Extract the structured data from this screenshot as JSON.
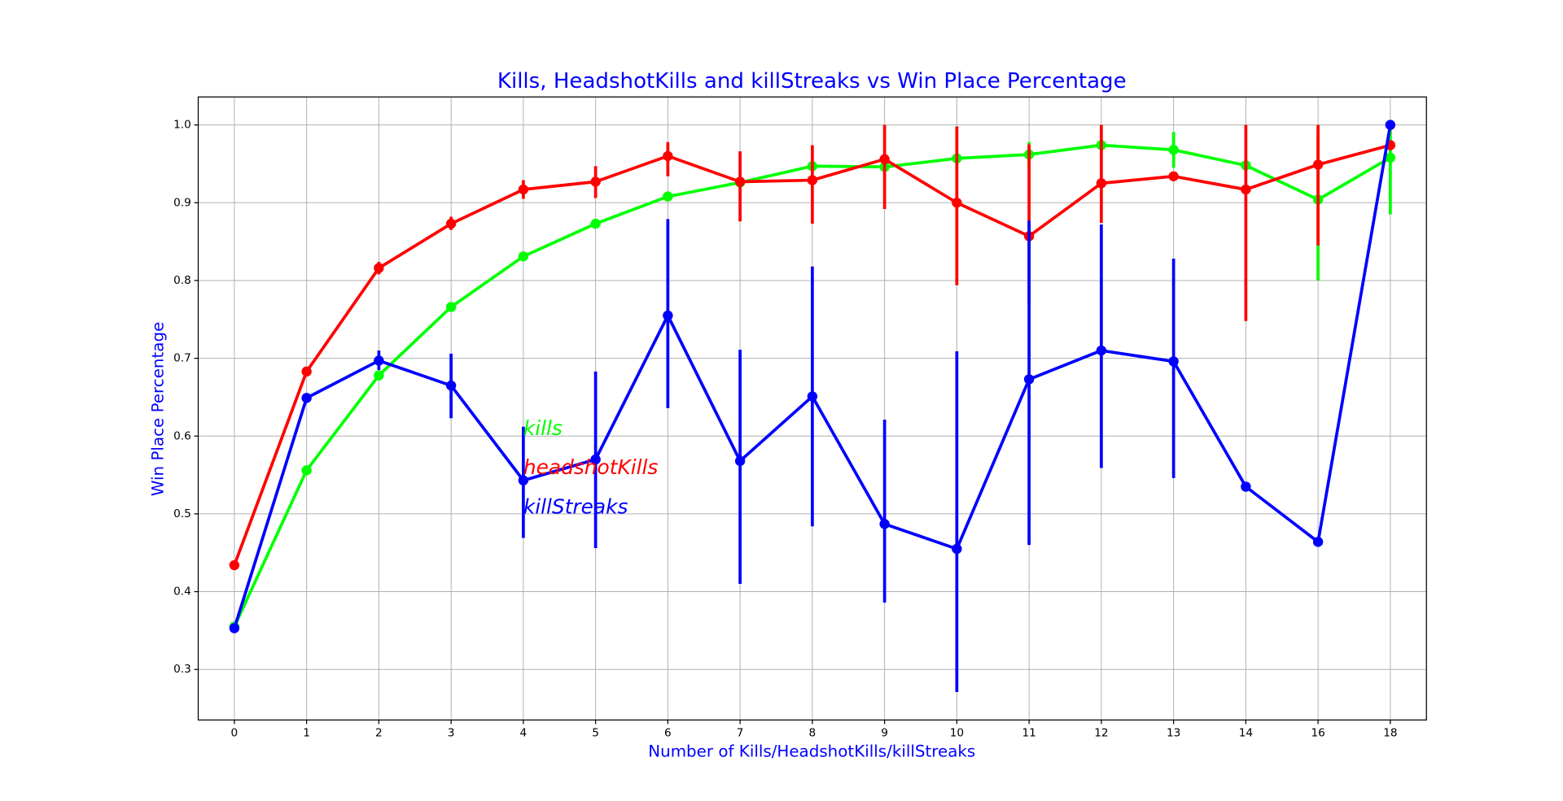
{
  "chart_data": {
    "type": "pointplot",
    "title": "Kills, HeadshotKills and killStreaks vs Win Place Percentage",
    "x_label": "Number of Kills/HeadshotKills/killStreaks",
    "y_label": "Win Place Percentage",
    "label_color": "#0000ff",
    "categories": [
      0,
      1,
      2,
      3,
      4,
      5,
      6,
      7,
      8,
      9,
      10,
      11,
      12,
      13,
      14,
      16,
      18
    ],
    "ylim": [
      0.235,
      1.036
    ],
    "yticks": [
      {
        "value": 0.3,
        "label": "0.3"
      },
      {
        "value": 0.4,
        "label": "0.4"
      },
      {
        "value": 0.5,
        "label": "0.5"
      },
      {
        "value": 0.6,
        "label": "0.6"
      },
      {
        "value": 0.7,
        "label": "0.7"
      },
      {
        "value": 0.8,
        "label": "0.8"
      },
      {
        "value": 0.9,
        "label": "0.9"
      },
      {
        "value": 1.0,
        "label": "1.0"
      }
    ],
    "grid": true,
    "series": [
      {
        "name": "kills",
        "color": "#00ff00",
        "values": [
          0.355,
          0.556,
          0.678,
          0.766,
          0.831,
          0.873,
          0.908,
          0.926,
          0.947,
          0.946,
          0.957,
          0.962,
          0.974,
          0.968,
          0.948,
          0.904,
          0.958
        ],
        "ci_low": [
          0.35,
          0.55,
          0.672,
          0.76,
          0.826,
          0.868,
          0.902,
          0.92,
          0.94,
          0.938,
          0.948,
          0.946,
          0.966,
          0.945,
          0.94,
          0.8,
          0.885
        ],
        "ci_high": [
          0.36,
          0.562,
          0.684,
          0.772,
          0.836,
          0.878,
          0.914,
          0.932,
          0.954,
          0.954,
          0.966,
          0.978,
          0.982,
          0.991,
          0.956,
          0.99,
          1.0
        ]
      },
      {
        "name": "headshotKills",
        "color": "#ff0000",
        "values": [
          0.434,
          0.683,
          0.816,
          0.873,
          0.917,
          0.927,
          0.96,
          0.927,
          0.929,
          0.956,
          0.9,
          0.857,
          0.925,
          0.934,
          0.917,
          0.949,
          0.974
        ],
        "ci_low": [
          0.428,
          0.677,
          0.808,
          0.865,
          0.905,
          0.906,
          0.934,
          0.876,
          0.873,
          0.892,
          0.794,
          0.77,
          0.874,
          0.928,
          0.748,
          0.845,
          0.968
        ],
        "ci_high": [
          0.44,
          0.689,
          0.824,
          0.882,
          0.929,
          0.947,
          0.978,
          0.966,
          0.974,
          1.0,
          0.998,
          0.975,
          1.0,
          0.94,
          1.0,
          1.0,
          0.98
        ]
      },
      {
        "name": "killStreaks",
        "color": "#0000ff",
        "values": [
          0.353,
          0.649,
          0.697,
          0.665,
          0.543,
          0.57,
          0.755,
          0.568,
          0.651,
          0.487,
          0.455,
          0.673,
          0.71,
          0.696,
          0.535,
          0.464,
          1.0
        ],
        "ci_low": [
          0.348,
          0.643,
          0.685,
          0.623,
          0.469,
          0.456,
          0.636,
          0.41,
          0.484,
          0.386,
          0.271,
          0.46,
          0.559,
          0.546,
          0.53,
          0.459,
          0.995
        ],
        "ci_high": [
          0.358,
          0.655,
          0.71,
          0.706,
          0.612,
          0.683,
          0.879,
          0.711,
          0.818,
          0.621,
          0.709,
          0.877,
          0.872,
          0.828,
          0.54,
          0.469,
          1.005
        ]
      }
    ]
  }
}
